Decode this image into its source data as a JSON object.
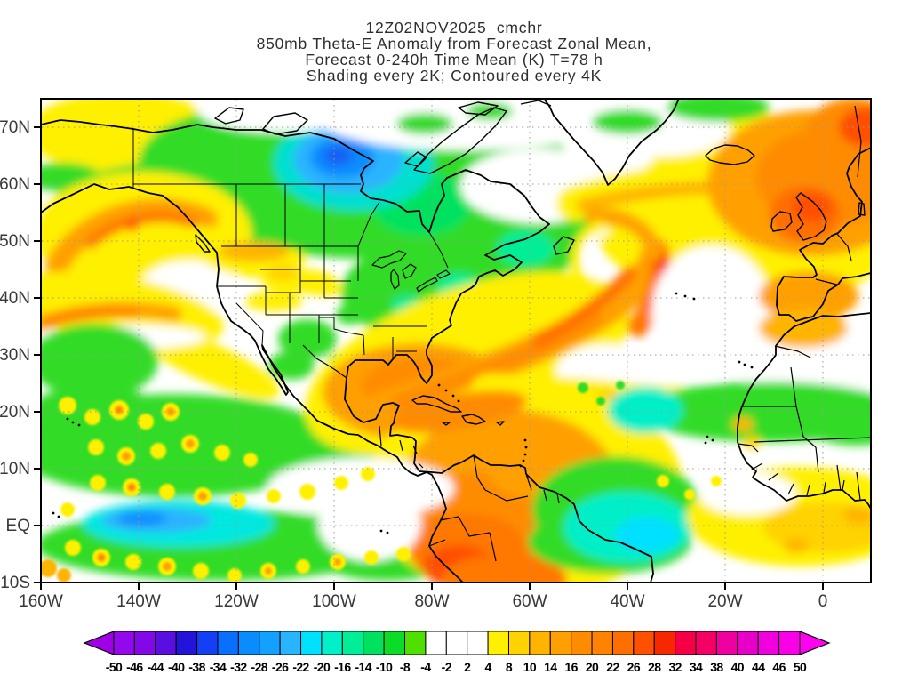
{
  "title": {
    "line1": "12Z02NOV2025  cmchr",
    "line2": "850mb Theta-E Anomaly from Forecast Zonal Mean,",
    "line3": "Forecast 0-240h Time Mean (K) T=78 h",
    "line4": "Shading every 2K; Contoured every 4K"
  },
  "chart_data": {
    "type": "filled_contour_map",
    "field": "850mb Theta-E Anomaly from Forecast Zonal Mean",
    "init": "12Z02NOV2025",
    "source_label": "cmchr",
    "forecast_span": "Forecast 0-240h Time Mean (K) T=78 h",
    "shading_note": "Shading every 2K; Contoured every 4K",
    "units": "K",
    "lat_ticks": [
      "70N",
      "60N",
      "50N",
      "40N",
      "30N",
      "20N",
      "10N",
      "EQ",
      "10S"
    ],
    "lon_ticks": [
      "160W",
      "140W",
      "120W",
      "100W",
      "80W",
      "60W",
      "40W",
      "20W",
      "0"
    ],
    "grid": "dotted, every 10 deg lat / 20 deg lon",
    "legend_position": "bottom",
    "colorbar": {
      "tick_labels": [
        "-50",
        "-46",
        "-44",
        "-40",
        "-38",
        "-34",
        "-32",
        "-28",
        "-26",
        "-22",
        "-20",
        "-16",
        "-14",
        "-10",
        "-8",
        "-4",
        "-2",
        "2",
        "4",
        "8",
        "10",
        "14",
        "16",
        "20",
        "22",
        "26",
        "28",
        "32",
        "34",
        "38",
        "40",
        "44",
        "46",
        "50"
      ],
      "cell_colors": [
        "#9209EC",
        "#8209E6",
        "#5A0FE1",
        "#2214D8",
        "#1440F5",
        "#0A6EFF",
        "#0A8CFF",
        "#14A0FF",
        "#29B4FF",
        "#00E0FF",
        "#00F0C8",
        "#00EE96",
        "#00E25F",
        "#0ADC28",
        "#50E000",
        "#FFFFFF",
        "#FFFFFF",
        "#FFFFFF",
        "#FFF000",
        "#FFD200",
        "#FFB400",
        "#FFA000",
        "#FF8C00",
        "#FF8200",
        "#FF6E00",
        "#FF5000",
        "#F52800",
        "#F50046",
        "#F50064",
        "#F000A0",
        "#E600C8",
        "#F000DC",
        "#FA00E6"
      ],
      "left_arrow_color": "#A000E6",
      "right_arrow_color": "#FF00F0"
    }
  },
  "colors": {
    "coastline": "#000000",
    "grid": "#9a9a9a",
    "text": "#303030",
    "background": "#ffffff"
  }
}
